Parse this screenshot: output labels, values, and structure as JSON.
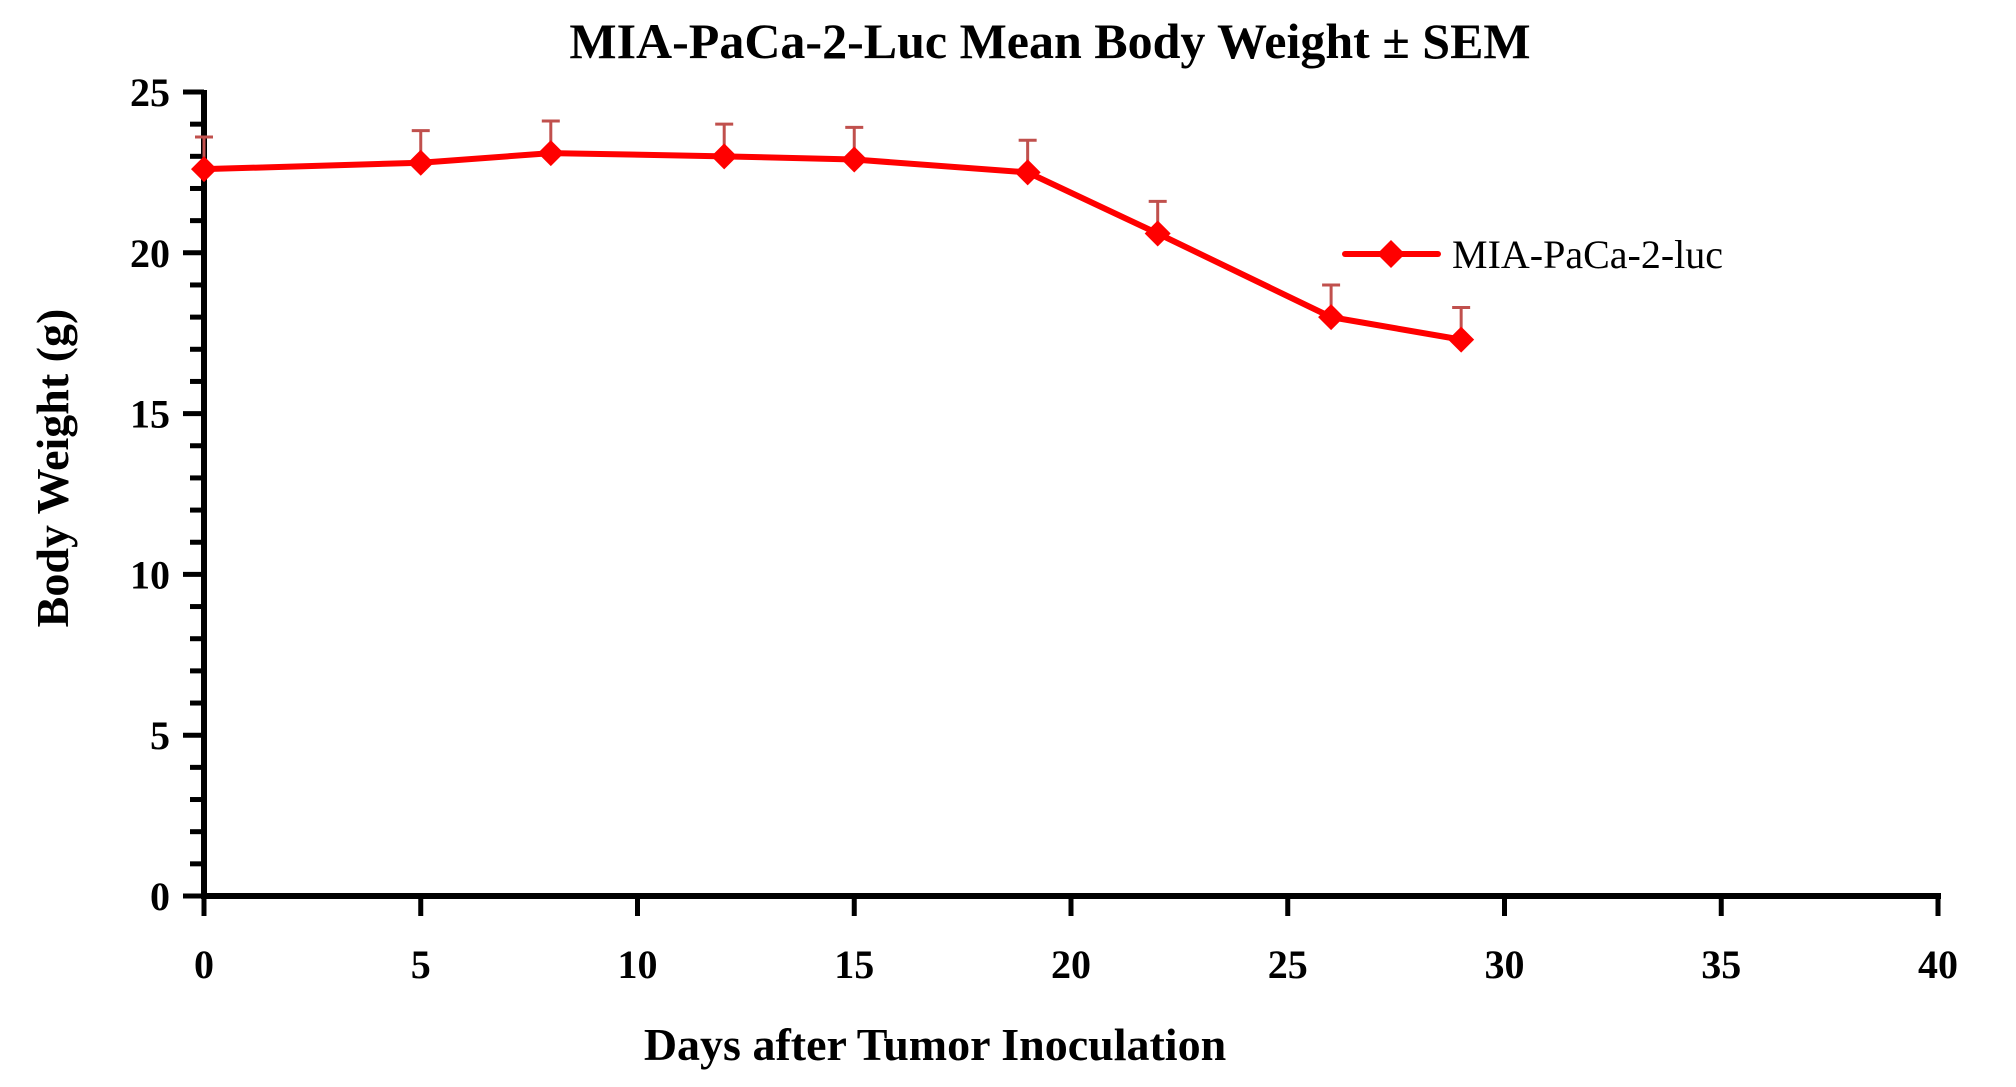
{
  "chart_data": {
    "type": "line",
    "title": "MIA-PaCa-2-Luc Mean Body Weight ± SEM",
    "xlabel": "Days after Tumor Inoculation",
    "ylabel": "Body Weight (g)",
    "xlim": [
      0,
      40
    ],
    "ylim": [
      0,
      25
    ],
    "x_ticks": [
      0,
      5,
      10,
      15,
      20,
      25,
      30,
      35,
      40
    ],
    "x_tick_labels": [
      "0",
      "5",
      "10",
      "15",
      "20",
      "25",
      "30",
      "35",
      "40"
    ],
    "y_ticks": [
      0,
      5,
      10,
      15,
      20,
      25
    ],
    "y_tick_labels": [
      "0",
      "5",
      "10",
      "15",
      "20",
      "25"
    ],
    "y_minor_step": 1,
    "grid": false,
    "legend_position": "right",
    "error_bars": "upper SEM",
    "series": [
      {
        "name": "MIA-PaCa-2-luc",
        "color": "#ff0000",
        "error_color": "#c0504d",
        "marker": "diamond",
        "x": [
          0,
          5,
          8,
          12,
          15,
          19,
          22,
          26,
          29
        ],
        "values": [
          22.6,
          22.8,
          23.1,
          23.0,
          22.9,
          22.5,
          20.6,
          18.0,
          17.3
        ],
        "sem": [
          1.0,
          1.0,
          1.0,
          1.0,
          1.0,
          1.0,
          1.0,
          1.0,
          1.0
        ]
      }
    ]
  }
}
